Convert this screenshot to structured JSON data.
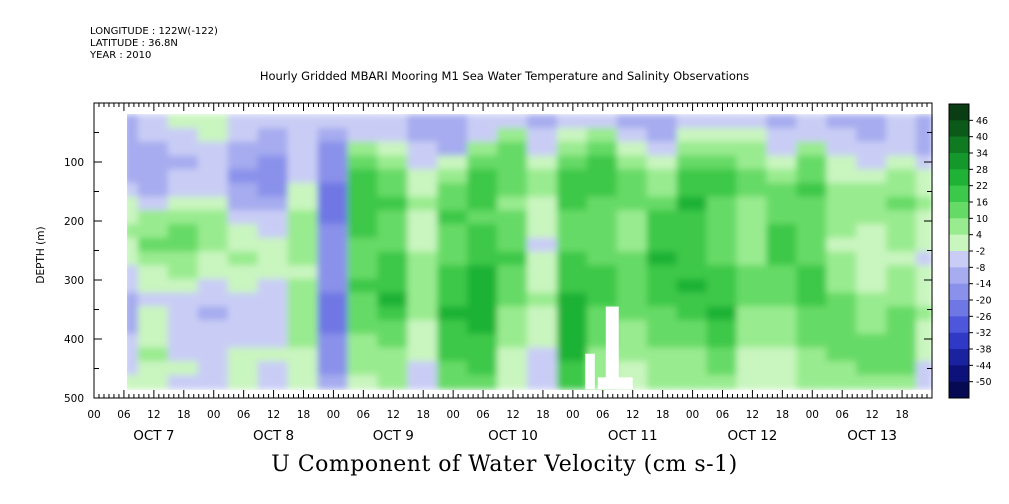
{
  "header": {
    "longitude": "LONGITUDE : 122W(-122)",
    "latitude": "LATITUDE : 36.8N",
    "year": "YEAR : 2010"
  },
  "chart_data": {
    "type": "heatmap",
    "title": "Hourly Gridded MBARI Mooring M1 Sea Water Temperature and Salinity Observations",
    "xlabel": "U Component of Water Velocity (cm s-1)",
    "ylabel": "DEPTH (m)",
    "ylim": [
      0,
      500
    ],
    "y_inverted": true,
    "y_ticks": [
      100,
      200,
      300,
      400,
      500
    ],
    "y_tick_labels": [
      "100",
      "200",
      "300",
      "400",
      "500"
    ],
    "x_hour_labels": [
      "00",
      "06",
      "12",
      "18",
      "00",
      "06",
      "12",
      "18",
      "00",
      "06",
      "12",
      "18",
      "00",
      "06",
      "12",
      "18",
      "00",
      "06",
      "12",
      "18",
      "00",
      "06",
      "12",
      "18",
      "00",
      "06",
      "12",
      "18"
    ],
    "x_day_labels": [
      "OCT  7",
      "OCT  8",
      "OCT  9",
      "OCT 10",
      "OCT 11",
      "OCT 12",
      "OCT 13"
    ],
    "data_start_hour": 6,
    "data_end_hour": 168,
    "data_top_depth": 20,
    "data_bottom_depth": 485,
    "colorbar": {
      "levels": [
        46,
        40,
        34,
        28,
        22,
        16,
        10,
        4,
        -2,
        -8,
        -14,
        -20,
        -26,
        -32,
        -38,
        -44,
        -50
      ],
      "max": 50,
      "min": -50,
      "colors": [
        "#0a3d14",
        "#0c5a1a",
        "#0f7a22",
        "#14982b",
        "#1fb236",
        "#3cc84a",
        "#66da66",
        "#99eb8f",
        "#c9f5bf",
        "#c9cdf5",
        "#a6acef",
        "#8a91ea",
        "#6f77e4",
        "#4e57dc",
        "#3038c6",
        "#1a22a0",
        "#0c127a",
        "#050a52"
      ]
    },
    "columns": [
      {
        "hour": 6,
        "values": [
          -12,
          -10,
          -14,
          -12,
          -10,
          -6,
          -2,
          2,
          4,
          2,
          -2,
          -6,
          -8,
          -10,
          -12,
          -10,
          -8,
          -6,
          -4,
          -2
        ]
      },
      {
        "hour": 12,
        "values": [
          -6,
          -8,
          -10,
          -12,
          -14,
          -10,
          -4,
          4,
          8,
          10,
          6,
          2,
          -2,
          -4,
          -2,
          0,
          2,
          4,
          2,
          0
        ]
      },
      {
        "hour": 18,
        "values": [
          -2,
          -4,
          -6,
          -10,
          -8,
          -4,
          2,
          8,
          12,
          10,
          6,
          4,
          0,
          -4,
          -6,
          -8,
          -6,
          -4,
          -2,
          -4
        ]
      },
      {
        "hour": 24,
        "values": [
          0,
          -2,
          -4,
          -6,
          -8,
          -6,
          -2,
          4,
          6,
          4,
          2,
          -2,
          -6,
          -8,
          -10,
          -8,
          -6,
          -4,
          -6,
          -8
        ]
      },
      {
        "hour": 30,
        "values": [
          -4,
          -8,
          -12,
          -14,
          -16,
          -14,
          -10,
          -6,
          -2,
          2,
          4,
          2,
          -2,
          -6,
          -8,
          -6,
          -4,
          -2,
          0,
          -2
        ]
      },
      {
        "hour": 36,
        "values": [
          -6,
          -10,
          -14,
          -16,
          -18,
          -16,
          -12,
          -8,
          -4,
          0,
          2,
          0,
          -4,
          -6,
          -8,
          -6,
          -4,
          -2,
          -4,
          -6
        ]
      },
      {
        "hour": 42,
        "values": [
          -4,
          -6,
          -8,
          -6,
          -4,
          -2,
          2,
          6,
          8,
          6,
          4,
          2,
          4,
          6,
          8,
          6,
          4,
          2,
          0,
          -2
        ]
      },
      {
        "hour": 48,
        "values": [
          -8,
          -12,
          -16,
          -18,
          -20,
          -22,
          -24,
          -22,
          -20,
          -18,
          -16,
          -18,
          -20,
          -22,
          -24,
          -22,
          -20,
          -18,
          -16,
          -14
        ]
      },
      {
        "hour": 54,
        "values": [
          -6,
          -4,
          4,
          10,
          16,
          18,
          20,
          18,
          16,
          14,
          12,
          14,
          16,
          14,
          12,
          10,
          8,
          6,
          4,
          2
        ]
      },
      {
        "hour": 60,
        "values": [
          -8,
          -6,
          2,
          8,
          12,
          14,
          16,
          14,
          12,
          14,
          16,
          18,
          20,
          22,
          18,
          14,
          10,
          8,
          6,
          4
        ]
      },
      {
        "hour": 66,
        "values": [
          -10,
          -12,
          -8,
          -4,
          0,
          2,
          4,
          2,
          0,
          2,
          4,
          6,
          8,
          6,
          4,
          2,
          0,
          -2,
          -4,
          -6
        ]
      },
      {
        "hour": 72,
        "values": [
          -12,
          -14,
          -10,
          2,
          8,
          12,
          14,
          16,
          14,
          12,
          14,
          16,
          18,
          20,
          22,
          20,
          18,
          16,
          14,
          12
        ]
      },
      {
        "hour": 78,
        "values": [
          -8,
          -4,
          6,
          12,
          16,
          18,
          16,
          14,
          16,
          18,
          20,
          22,
          24,
          26,
          24,
          22,
          20,
          18,
          16,
          14
        ]
      },
      {
        "hour": 84,
        "values": [
          -6,
          4,
          10,
          14,
          12,
          10,
          8,
          10,
          12,
          14,
          16,
          14,
          12,
          10,
          8,
          6,
          4,
          2,
          0,
          -2
        ]
      },
      {
        "hour": 90,
        "values": [
          -10,
          -8,
          -4,
          2,
          6,
          4,
          2,
          0,
          -2,
          -4,
          -2,
          0,
          2,
          4,
          2,
          0,
          -2,
          -4,
          -6,
          -8
        ]
      },
      {
        "hour": 96,
        "values": [
          -6,
          -2,
          6,
          12,
          16,
          18,
          16,
          14,
          12,
          14,
          16,
          18,
          20,
          22,
          24,
          26,
          24,
          22,
          20,
          18
        ]
      },
      {
        "hour": 102,
        "values": [
          -4,
          4,
          10,
          16,
          20,
          18,
          14,
          12,
          10,
          12,
          14,
          16,
          18,
          16,
          14,
          12,
          10,
          8,
          6,
          4
        ]
      },
      {
        "hour": 108,
        "values": [
          -10,
          -8,
          -2,
          6,
          10,
          12,
          10,
          8,
          6,
          8,
          10,
          12,
          14,
          12,
          10,
          8,
          6,
          4,
          2,
          0
        ]
      },
      {
        "hour": 114,
        "values": [
          -12,
          -10,
          -6,
          0,
          4,
          8,
          12,
          16,
          18,
          20,
          22,
          20,
          18,
          16,
          14,
          12,
          10,
          8,
          6,
          4
        ]
      },
      {
        "hour": 120,
        "values": [
          -8,
          -2,
          6,
          12,
          16,
          20,
          22,
          20,
          18,
          16,
          18,
          20,
          22,
          20,
          18,
          14,
          10,
          8,
          6,
          4
        ]
      },
      {
        "hour": 126,
        "values": [
          -6,
          2,
          8,
          14,
          18,
          16,
          14,
          12,
          10,
          12,
          14,
          16,
          18,
          20,
          22,
          20,
          18,
          14,
          10,
          8
        ]
      },
      {
        "hour": 132,
        "values": [
          -4,
          0,
          4,
          8,
          12,
          10,
          8,
          6,
          4,
          6,
          8,
          10,
          12,
          10,
          8,
          6,
          4,
          2,
          0,
          -2
        ]
      },
      {
        "hour": 138,
        "values": [
          -10,
          -8,
          -4,
          2,
          6,
          10,
          12,
          14,
          16,
          18,
          16,
          14,
          12,
          10,
          8,
          6,
          4,
          2,
          0,
          -2
        ]
      },
      {
        "hour": 144,
        "values": [
          -8,
          -4,
          4,
          10,
          14,
          16,
          14,
          12,
          10,
          12,
          14,
          16,
          18,
          16,
          14,
          12,
          10,
          8,
          6,
          4
        ]
      },
      {
        "hour": 150,
        "values": [
          -10,
          -8,
          -6,
          -2,
          2,
          6,
          8,
          6,
          4,
          2,
          4,
          6,
          8,
          10,
          12,
          14,
          12,
          10,
          8,
          6
        ]
      },
      {
        "hour": 156,
        "values": [
          -12,
          -10,
          -8,
          -4,
          0,
          4,
          6,
          4,
          2,
          0,
          -2,
          0,
          2,
          4,
          6,
          8,
          10,
          12,
          10,
          8
        ]
      },
      {
        "hour": 162,
        "values": [
          -8,
          -6,
          -4,
          0,
          4,
          8,
          10,
          8,
          6,
          4,
          2,
          4,
          6,
          8,
          10,
          12,
          14,
          12,
          10,
          8
        ]
      },
      {
        "hour": 168,
        "values": [
          -14,
          -12,
          -10,
          -6,
          -2,
          2,
          4,
          2,
          0,
          -2,
          -4,
          -2,
          0,
          2,
          4,
          2,
          0,
          -2,
          -4,
          -6
        ]
      }
    ],
    "missing": [
      {
        "hour_start": 102.6,
        "hour_end": 105.2,
        "depth_start": 345,
        "depth_end": 485
      },
      {
        "hour_start": 98.5,
        "hour_end": 100.4,
        "depth_start": 425,
        "depth_end": 485
      },
      {
        "hour_start": 101.0,
        "hour_end": 108.0,
        "depth_start": 465,
        "depth_end": 485
      }
    ]
  }
}
